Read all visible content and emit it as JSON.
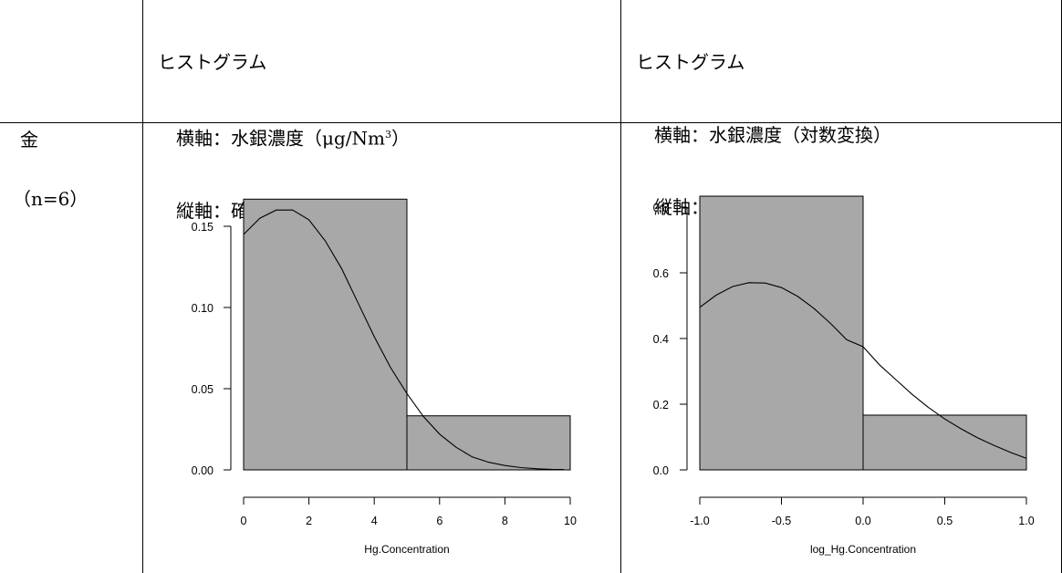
{
  "header": {
    "col1": {
      "line1": "ヒストグラム",
      "line2_prefix": "横軸：水銀濃度（μg/Nm",
      "line2_sup": "3",
      "line2_suffix": "）",
      "line3": "縦軸：確率密度"
    },
    "col2": {
      "line1": "ヒストグラム",
      "line2": "横軸：水銀濃度（対数変換）",
      "line3": "縦軸：確率密度"
    }
  },
  "row": {
    "label": "金",
    "n": "（n=6）"
  },
  "chart_data": [
    {
      "type": "bar",
      "subtype": "histogram_with_density_curve",
      "xlabel": "Hg.Concentration",
      "ylabel": "",
      "xlim": [
        0,
        10
      ],
      "ylim": [
        0,
        0.15
      ],
      "xticks": [
        "0",
        "2",
        "4",
        "6",
        "8",
        "10"
      ],
      "yticks": [
        "0.00",
        "0.05",
        "0.10",
        "0.15"
      ],
      "bins": [
        {
          "start": 0,
          "end": 5,
          "density": 0.1667
        },
        {
          "start": 5,
          "end": 10,
          "density": 0.0333
        }
      ],
      "curve": {
        "x": [
          0,
          0.5,
          1,
          1.5,
          2,
          2.5,
          3,
          3.5,
          4,
          4.5,
          5,
          5.5,
          6,
          6.5,
          7,
          7.5,
          8,
          8.5,
          9,
          9.5,
          9.8
        ],
        "y": [
          0.145,
          0.155,
          0.16,
          0.16,
          0.154,
          0.141,
          0.124,
          0.103,
          0.082,
          0.063,
          0.047,
          0.033,
          0.022,
          0.014,
          0.008,
          0.0047,
          0.0027,
          0.0014,
          0.0007,
          0.0003,
          0.0002
        ]
      },
      "bar_color": "#a8a8a8"
    },
    {
      "type": "bar",
      "subtype": "histogram_with_density_curve",
      "xlabel": "log_Hg.Concentration",
      "ylabel": "",
      "xlim": [
        -1.0,
        1.0
      ],
      "ylim": [
        0,
        0.8
      ],
      "xticks": [
        "-1.0",
        "-0.5",
        "0.0",
        "0.5",
        "1.0"
      ],
      "yticks": [
        "0.0",
        "0.2",
        "0.4",
        "0.6",
        "0.8"
      ],
      "bins": [
        {
          "start": -1.0,
          "end": 0.0,
          "density": 0.8333
        },
        {
          "start": 0.0,
          "end": 1.0,
          "density": 0.1667
        }
      ],
      "curve": {
        "x": [
          -1.0,
          -0.9,
          -0.8,
          -0.7,
          -0.6,
          -0.5,
          -0.4,
          -0.3,
          -0.2,
          -0.1,
          0.0,
          0.1,
          0.2,
          0.3,
          0.4,
          0.5,
          0.6,
          0.7,
          0.8,
          0.9,
          1.0
        ],
        "y": [
          0.495,
          0.532,
          0.558,
          0.57,
          0.569,
          0.555,
          0.528,
          0.491,
          0.446,
          0.396,
          0.375,
          0.32,
          0.275,
          0.23,
          0.19,
          0.155,
          0.125,
          0.098,
          0.075,
          0.054,
          0.035
        ]
      },
      "bar_color": "#a8a8a8"
    }
  ]
}
